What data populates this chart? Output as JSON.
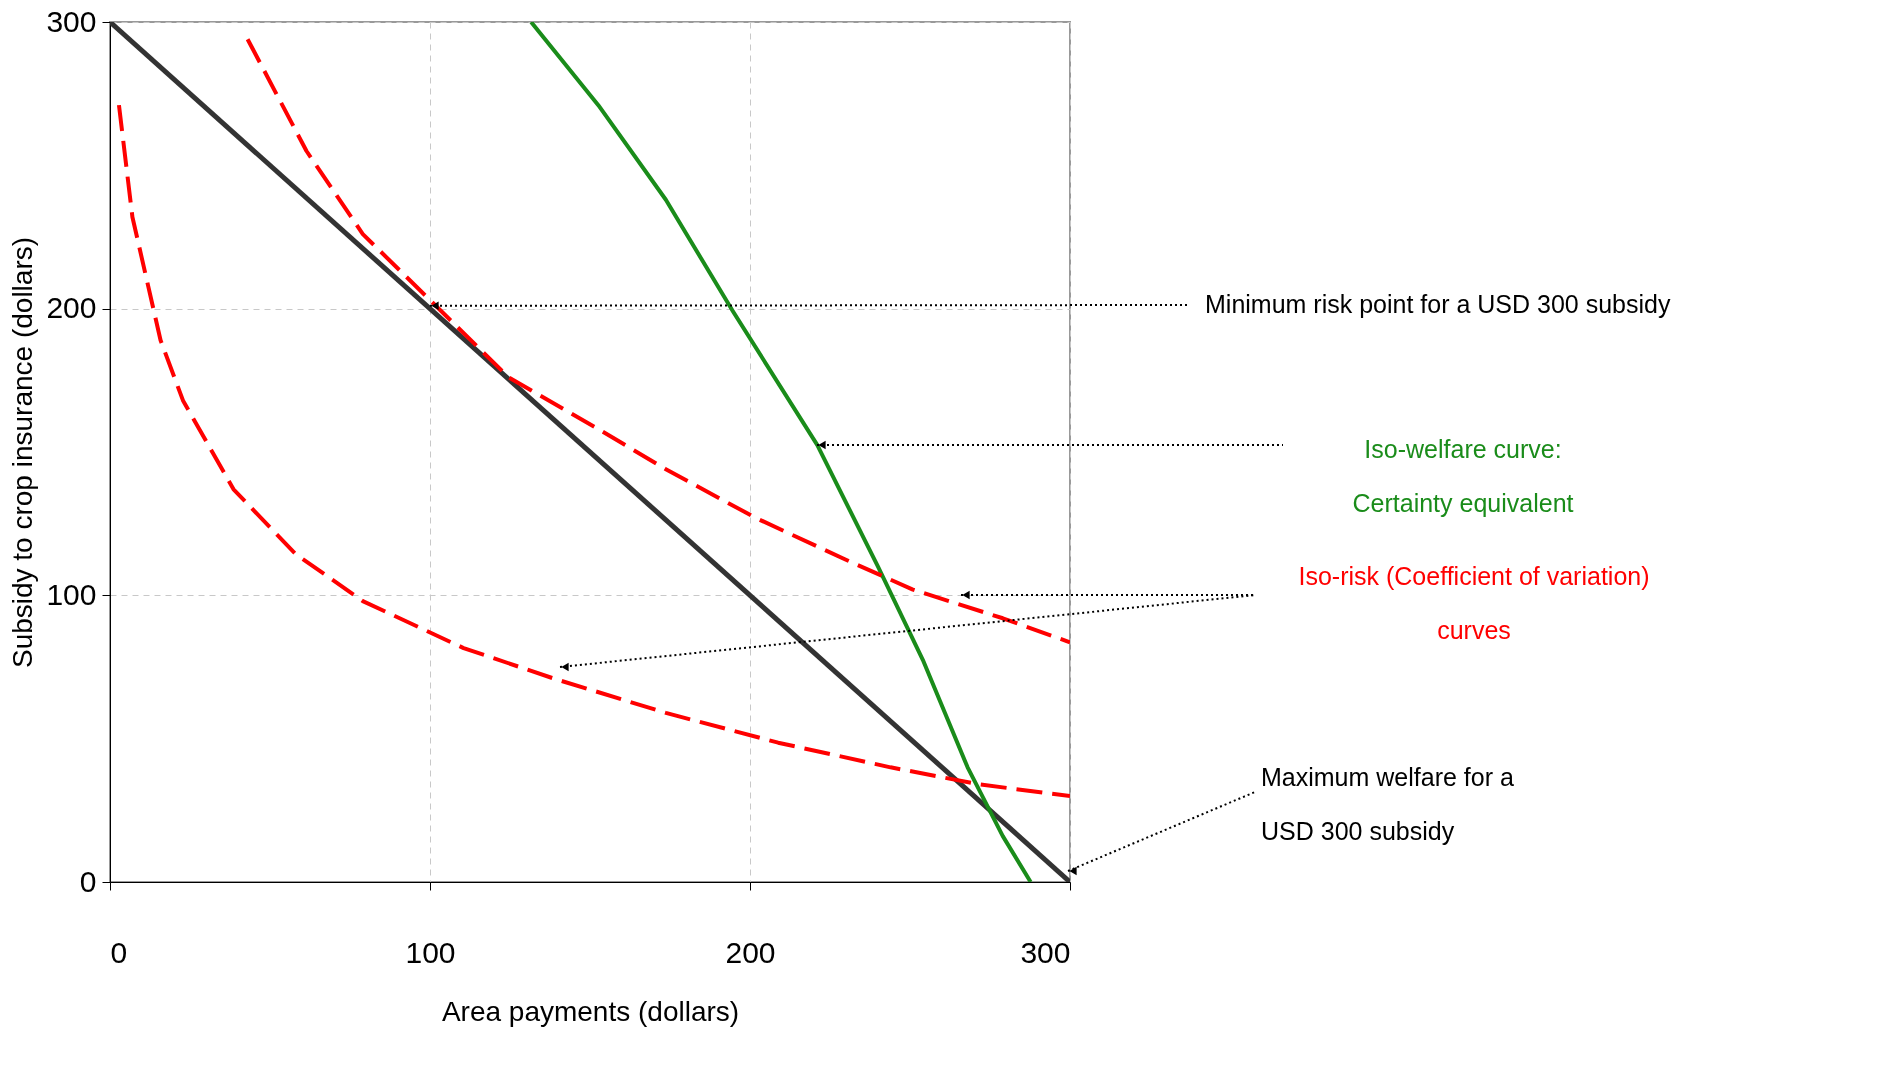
{
  "chart_data": {
    "type": "line",
    "xlabel": "Area payments  (dollars)",
    "ylabel": "Subsidy to crop insurance (dollars)",
    "xlim": [
      0,
      300
    ],
    "ylim": [
      0,
      300
    ],
    "xticks": [
      0,
      100,
      200,
      300
    ],
    "yticks": [
      0,
      100,
      200,
      300
    ],
    "grid": true,
    "marker": "none",
    "series": [
      {
        "color": "#333333",
        "line_style": "solid",
        "x": [
          0,
          300
        ],
        "values": [
          300,
          0
        ]
      },
      {
        "color": "#1a8c1a",
        "line_style": "solid",
        "x": [
          131.6,
          152.6,
          173.7,
          194.7,
          221,
          240,
          254,
          268,
          279,
          287.7
        ],
        "values": [
          300,
          271,
          238,
          199,
          152.5,
          110,
          77.5,
          40,
          16,
          0
        ]
      },
      {
        "color": "#ff0000",
        "line_style": "dashed",
        "x": [
          43,
          61.4,
          79,
          100,
          124.6,
          152.6,
          173.7,
          201.8,
          229.8,
          250.9,
          279,
          300
        ],
        "values": [
          294,
          255,
          226,
          203,
          176,
          158,
          144,
          127,
          112.5,
          102,
          92,
          83.6
        ]
      },
      {
        "color": "#ff0000",
        "line_style": "dashed",
        "x": [
          2.8,
          7,
          15.8,
          22.8,
          38.6,
          57.9,
          79,
          110.5,
          138.6,
          173.7,
          208.8,
          243.9,
          272,
          300
        ],
        "values": [
          271,
          232,
          189,
          168,
          137,
          114.5,
          98,
          81.6,
          71,
          59,
          48.6,
          40,
          34,
          30
        ]
      }
    ],
    "annotations": [
      {
        "text": "Minimum risk point for a USD 300 subsidy",
        "x": 100,
        "y": 201
      },
      "Iso-welfare curve:\nCertainty equivalent",
      "Iso-risk (Coefficient of variation)\ncurves",
      "Maximum welfare for a\nUSD 300 subsidy"
    ]
  }
}
